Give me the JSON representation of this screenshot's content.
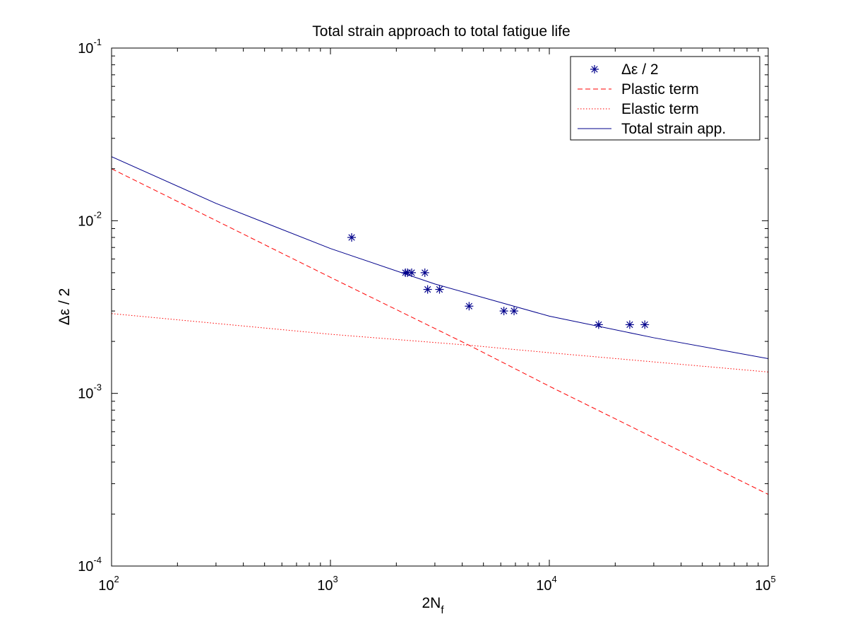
{
  "chart_data": {
    "type": "line",
    "title": "Total strain approach to total fatigue life",
    "xlabel": {
      "base": "2N",
      "sub": "f"
    },
    "ylabel": "Δε / 2",
    "xscale": "log",
    "yscale": "log",
    "xlim": [
      100,
      100000
    ],
    "ylim": [
      0.0001,
      0.1
    ],
    "grid": false,
    "legend_placement": "top-right",
    "x_ticks": [
      {
        "base": "10",
        "exp": "2",
        "value": 100
      },
      {
        "base": "10",
        "exp": "3",
        "value": 1000
      },
      {
        "base": "10",
        "exp": "4",
        "value": 10000
      },
      {
        "base": "10",
        "exp": "5",
        "value": 100000
      }
    ],
    "y_ticks": [
      {
        "base": "10",
        "exp": "-4",
        "value": 0.0001
      },
      {
        "base": "10",
        "exp": "-3",
        "value": 0.001
      },
      {
        "base": "10",
        "exp": "-2",
        "value": 0.01
      },
      {
        "base": "10",
        "exp": "-1",
        "value": 0.1
      }
    ],
    "series": [
      {
        "name": "Δε / 2",
        "kind": "scatter",
        "marker": "asterisk",
        "color": "#00008B",
        "points": [
          [
            1250,
            0.008
          ],
          [
            2200,
            0.005
          ],
          [
            2250,
            0.005
          ],
          [
            2350,
            0.005
          ],
          [
            2700,
            0.005
          ],
          [
            2780,
            0.004
          ],
          [
            3150,
            0.004
          ],
          [
            4300,
            0.0032
          ],
          [
            6200,
            0.003
          ],
          [
            6900,
            0.003
          ],
          [
            16800,
            0.0025
          ],
          [
            23300,
            0.0025
          ],
          [
            27300,
            0.0025
          ]
        ]
      },
      {
        "name": "Plastic term",
        "kind": "line",
        "style": "dashed",
        "color": "#FF0000",
        "points": [
          [
            100,
            0.02
          ],
          [
            1000,
            0.0047
          ],
          [
            4300,
            0.0019
          ],
          [
            10000,
            0.0011
          ],
          [
            100000,
            0.00026
          ]
        ]
      },
      {
        "name": "Elastic term",
        "kind": "line",
        "style": "dotted",
        "color": "#FF0000",
        "points": [
          [
            100,
            0.0029
          ],
          [
            1000,
            0.0022
          ],
          [
            4300,
            0.0019
          ],
          [
            10000,
            0.00172
          ],
          [
            100000,
            0.00133
          ]
        ]
      },
      {
        "name": "Total strain app.",
        "kind": "line",
        "style": "solid",
        "color": "#00008B",
        "points": [
          [
            100,
            0.0235
          ],
          [
            300,
            0.0126
          ],
          [
            1000,
            0.0069
          ],
          [
            3000,
            0.0043
          ],
          [
            10000,
            0.0028
          ],
          [
            30000,
            0.0021
          ],
          [
            100000,
            0.00159
          ]
        ]
      }
    ]
  }
}
